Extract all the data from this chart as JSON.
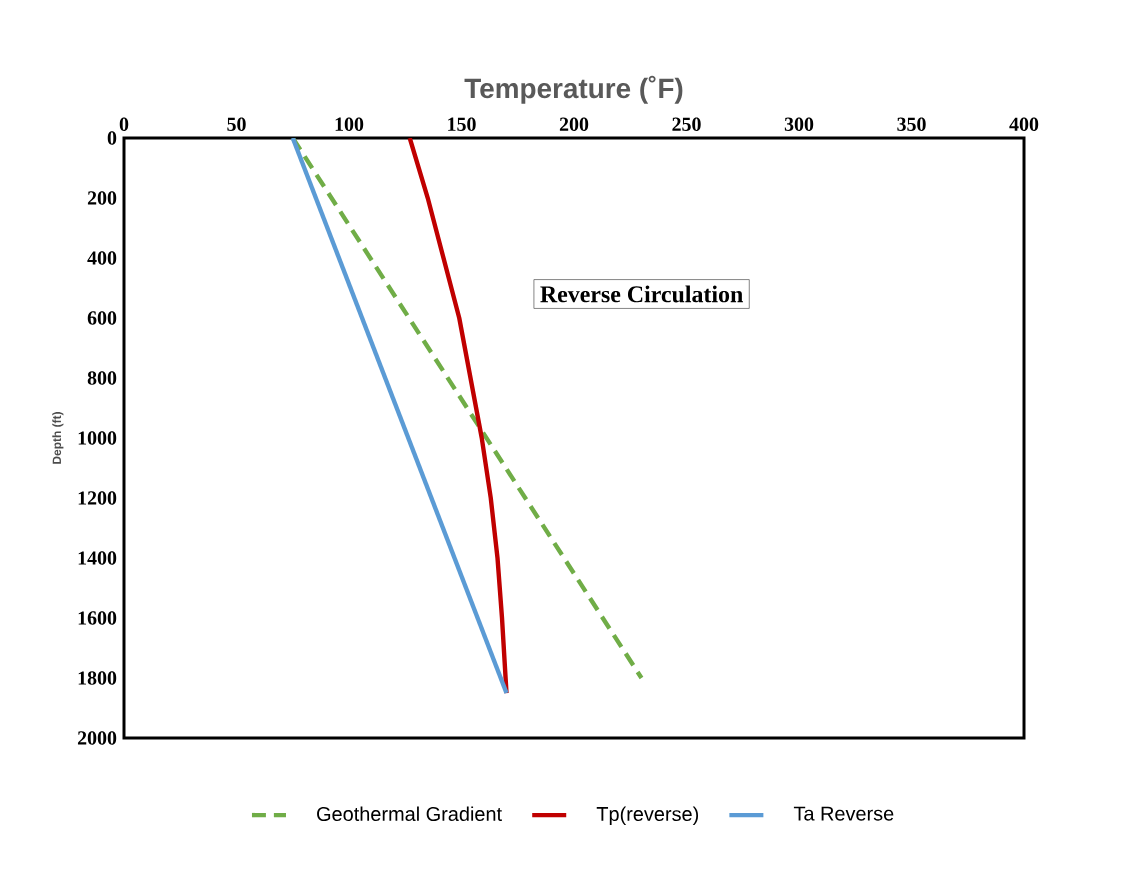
{
  "chart_data": {
    "type": "line",
    "xlabel": "Temperature (˚F)",
    "ylabel": "Depth (ft)",
    "xlim": [
      0,
      400
    ],
    "xticks": [
      0,
      50,
      100,
      150,
      200,
      250,
      300,
      350,
      400
    ],
    "ylim": [
      2000,
      0
    ],
    "yticks": [
      0,
      200,
      400,
      600,
      800,
      1000,
      1200,
      1400,
      1600,
      1800,
      2000
    ],
    "grid": false,
    "legend": "bottom",
    "marker": "none",
    "annotations": [
      "Reverse Circulation"
    ],
    "series": [
      {
        "name": "Geothermal Gradient",
        "color": "#70ad47",
        "line_style": "dashed",
        "x": [
          75,
          230
        ],
        "values": [
          0,
          1800
        ]
      },
      {
        "name": "Tp(reverse)",
        "color": "#c00000",
        "line_style": "solid",
        "x": [
          127,
          135,
          142,
          149,
          154,
          159,
          163,
          166,
          168,
          170
        ],
        "values": [
          0,
          200,
          400,
          600,
          800,
          1000,
          1200,
          1400,
          1600,
          1850
        ]
      },
      {
        "name": "Ta Reverse",
        "color": "#5b9bd5",
        "line_style": "solid",
        "x": [
          75,
          170
        ],
        "values": [
          0,
          1850
        ]
      }
    ]
  }
}
